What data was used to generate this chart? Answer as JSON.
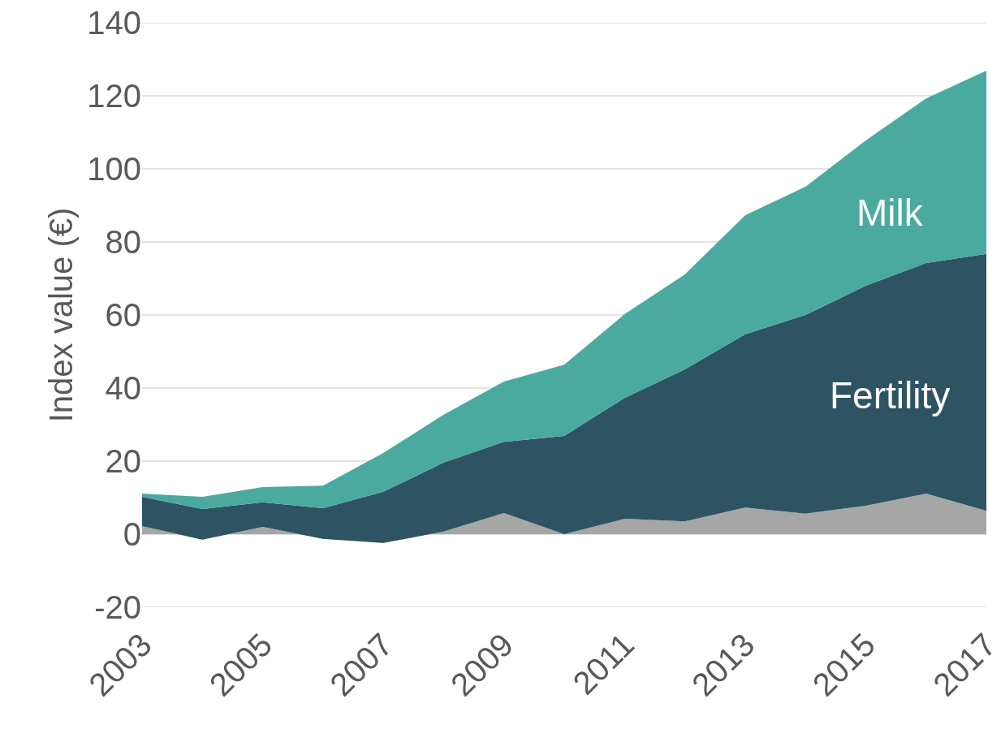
{
  "chart_data": {
    "type": "area",
    "stacked": true,
    "ylabel": "Index value (€)",
    "x": [
      2003,
      2004,
      2005,
      2006,
      2007,
      2008,
      2009,
      2010,
      2011,
      2012,
      2013,
      2014,
      2015,
      2016,
      2017
    ],
    "xlim": [
      2003,
      2017
    ],
    "xticks": [
      2003,
      2005,
      2007,
      2009,
      2011,
      2013,
      2015,
      2017
    ],
    "ylim": [
      -20,
      140
    ],
    "yticks": [
      -20,
      0,
      20,
      40,
      60,
      80,
      100,
      120,
      140
    ],
    "grid": "y",
    "legend": false,
    "series": [
      {
        "color": "#a6a6a6",
        "values": [
          2.2,
          -1.5,
          2.0,
          -1.3,
          -2.4,
          0.7,
          5.8,
          0.0,
          4.2,
          3.5,
          7.3,
          5.6,
          7.8,
          11.1,
          6.4
        ]
      },
      {
        "name": "Fertility",
        "color": "#2e5463",
        "values": [
          8.0,
          8.4,
          6.7,
          8.4,
          14.0,
          18.9,
          19.5,
          26.9,
          33.1,
          41.6,
          47.4,
          54.4,
          60.2,
          63.1,
          70.3
        ]
      },
      {
        "name": "Milk",
        "color": "#4aaaa0",
        "values": [
          0.9,
          3.3,
          4.2,
          6.2,
          10.6,
          13.1,
          16.5,
          19.5,
          22.9,
          26.0,
          32.6,
          35.1,
          39.8,
          45.1,
          50.2
        ]
      }
    ]
  }
}
